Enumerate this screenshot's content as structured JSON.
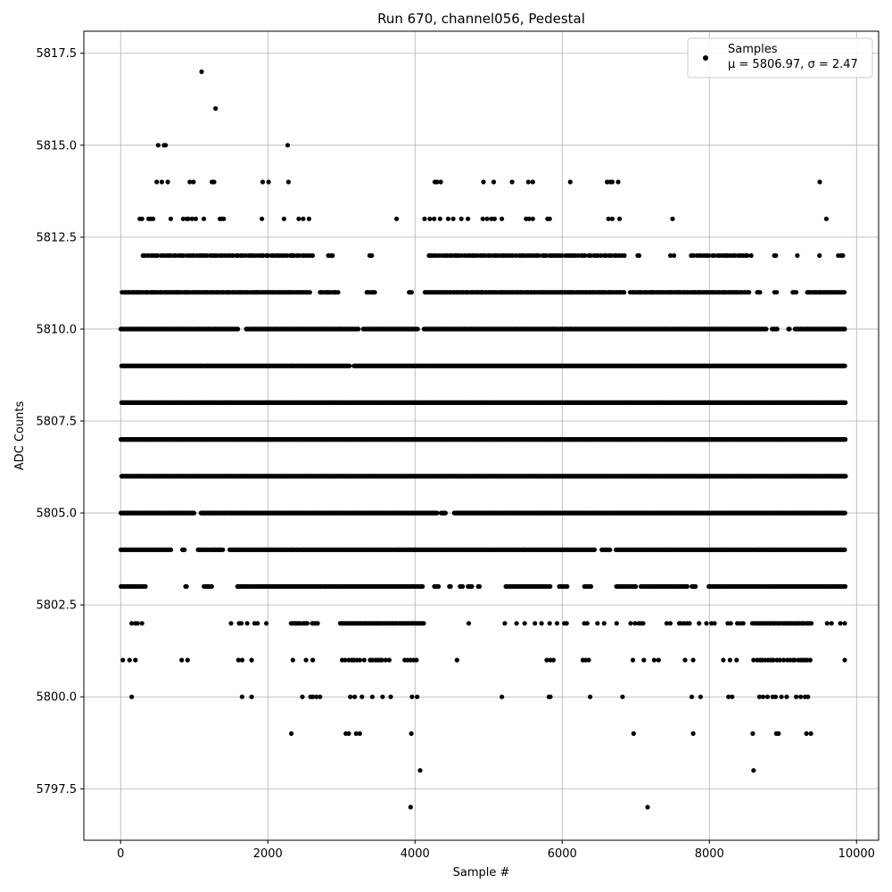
{
  "chart_data": {
    "type": "scatter",
    "title": "Run 670, channel056, Pedestal",
    "xlabel": "Sample #",
    "ylabel": "ADC Counts",
    "xlim": [
      -500,
      10300
    ],
    "ylim": [
      5796.1,
      5818.1
    ],
    "x_ticks": [
      0,
      2000,
      4000,
      6000,
      8000,
      10000
    ],
    "y_ticks": [
      5797.5,
      5800.0,
      5802.5,
      5805.0,
      5807.5,
      5810.0,
      5812.5,
      5815.0,
      5817.5
    ],
    "grid": true,
    "legend": {
      "placement": "top-right",
      "entries": [
        {
          "label": "Samples",
          "stats": "μ = 5806.97, σ = 2.47",
          "color": "#000000"
        }
      ]
    },
    "series": [
      {
        "name": "Samples",
        "color": "#000000",
        "n_samples": 9850,
        "points": [
          [
            1100,
            5817
          ],
          [
            1290,
            5816
          ],
          [
            510,
            5815
          ],
          [
            590,
            5815
          ],
          [
            610,
            5815
          ],
          [
            2270,
            5815
          ],
          [
            490,
            5814
          ],
          [
            560,
            5814
          ],
          [
            640,
            5814
          ],
          [
            940,
            5814
          ],
          [
            990,
            5814
          ],
          [
            1240,
            5814
          ],
          [
            1270,
            5814
          ],
          [
            1930,
            5814
          ],
          [
            2010,
            5814
          ],
          [
            2280,
            5814
          ],
          [
            4270,
            5814
          ],
          [
            4300,
            5814
          ],
          [
            4350,
            5814
          ],
          [
            4930,
            5814
          ],
          [
            5070,
            5814
          ],
          [
            5320,
            5814
          ],
          [
            5540,
            5814
          ],
          [
            5600,
            5814
          ],
          [
            6110,
            5814
          ],
          [
            6610,
            5814
          ],
          [
            6650,
            5814
          ],
          [
            6680,
            5814
          ],
          [
            6760,
            5814
          ],
          [
            9500,
            5814
          ],
          [
            7160,
            5797
          ],
          [
            3940,
            5797
          ],
          [
            4070,
            5798
          ],
          [
            8600,
            5798
          ],
          [
            2320,
            5799
          ],
          [
            3060,
            5799
          ],
          [
            3100,
            5799
          ],
          [
            3200,
            5799
          ],
          [
            3250,
            5799
          ],
          [
            3950,
            5799
          ],
          [
            6970,
            5799
          ],
          [
            7780,
            5799
          ],
          [
            8590,
            5799
          ],
          [
            8910,
            5799
          ],
          [
            8940,
            5799
          ],
          [
            9320,
            5799
          ],
          [
            9380,
            5799
          ],
          [
            150,
            5800
          ],
          [
            1650,
            5800
          ],
          [
            1780,
            5800
          ],
          [
            2470,
            5800
          ],
          [
            2580,
            5800
          ],
          [
            2610,
            5800
          ],
          [
            2660,
            5800
          ],
          [
            2710,
            5800
          ],
          [
            3120,
            5800
          ],
          [
            3180,
            5800
          ],
          [
            3280,
            5800
          ],
          [
            3420,
            5800
          ],
          [
            3560,
            5800
          ],
          [
            3670,
            5800
          ],
          [
            3960,
            5800
          ],
          [
            4030,
            5800
          ],
          [
            5180,
            5800
          ],
          [
            5820,
            5800
          ],
          [
            5840,
            5800
          ],
          [
            6380,
            5800
          ],
          [
            6820,
            5800
          ],
          [
            7760,
            5800
          ],
          [
            7880,
            5800
          ],
          [
            8260,
            5800
          ],
          [
            8310,
            5800
          ],
          [
            8680,
            5800
          ],
          [
            8730,
            5800
          ],
          [
            8790,
            5800
          ],
          [
            8860,
            5800
          ],
          [
            8900,
            5800
          ],
          [
            8980,
            5800
          ],
          [
            9050,
            5800
          ],
          [
            9180,
            5800
          ],
          [
            9240,
            5800
          ],
          [
            9300,
            5800
          ],
          [
            9340,
            5800
          ]
        ],
        "bands": [
          {
            "y": 5813,
            "x": [
              260,
              290,
              380,
              410,
              440,
              680,
              850,
              900,
              920,
              970,
              1020,
              1130,
              1350,
              1370,
              1400,
              1920,
              2220,
              2420,
              2480,
              2560,
              3750,
              4130,
              4200,
              4260,
              4340,
              4450,
              4520,
              4630,
              4720,
              4920,
              4980,
              5040,
              5080,
              5180,
              5510,
              5550,
              5600,
              5800,
              5830,
              6630,
              6680,
              6780,
              7500,
              9590
            ]
          },
          {
            "y": 5812,
            "range": [
              300,
              9850
            ],
            "gaps": [
              [
                2620,
                2800
              ],
              [
                2900,
                3380
              ],
              [
                3420,
                4180
              ],
              [
                6880,
                6980
              ],
              [
                7050,
                7450
              ],
              [
                7550,
                7740
              ],
              [
                8600,
                8880
              ],
              [
                8920,
                9180
              ],
              [
                9220,
                9480
              ],
              [
                9520,
                9720
              ]
            ],
            "step": 35
          },
          {
            "y": 5811,
            "range": [
              0,
              9850
            ],
            "gaps": [
              [
                2580,
                2680
              ],
              [
                2960,
                3320
              ],
              [
                3470,
                3900
              ],
              [
                3960,
                4120
              ],
              [
                6860,
                6920
              ],
              [
                8540,
                8640
              ],
              [
                8700,
                8880
              ],
              [
                8920,
                9130
              ],
              [
                9180,
                9320
              ]
            ],
            "step": 22
          },
          {
            "y": 5810,
            "range": [
              0,
              9850
            ],
            "gaps": [
              [
                1600,
                1700
              ],
              [
                3240,
                3290
              ],
              [
                4050,
                4120
              ],
              [
                8780,
                8850
              ],
              [
                8930,
                9060
              ],
              [
                9100,
                9160
              ]
            ],
            "step": 15
          },
          {
            "y": 5809,
            "range": [
              0,
              9850
            ],
            "gaps": [
              [
                3120,
                3160
              ]
            ],
            "step": 12
          },
          {
            "y": 5808,
            "range": [
              0,
              9850
            ],
            "step": 10
          },
          {
            "y": 5807,
            "range": [
              0,
              9850
            ],
            "step": 10
          },
          {
            "y": 5806,
            "range": [
              0,
              9850
            ],
            "step": 10
          },
          {
            "y": 5805,
            "range": [
              0,
              9850
            ],
            "gaps": [
              [
                1000,
                1080
              ],
              [
                4300,
                4350
              ],
              [
                4420,
                4530
              ]
            ],
            "step": 12
          },
          {
            "y": 5804,
            "range": [
              0,
              9850
            ],
            "gaps": [
              [
                700,
                830
              ],
              [
                870,
                1040
              ],
              [
                1400,
                1470
              ],
              [
                6450,
                6530
              ],
              [
                6650,
                6730
              ]
            ],
            "step": 14
          },
          {
            "y": 5803,
            "range": [
              0,
              9850
            ],
            "gaps": [
              [
                340,
                880
              ],
              [
                920,
                1130
              ],
              [
                1250,
                1580
              ],
              [
                4110,
                4250
              ],
              [
                4320,
                4460
              ],
              [
                4490,
                4600
              ],
              [
                4650,
                4720
              ],
              [
                4780,
                4850
              ],
              [
                4890,
                5230
              ],
              [
                5850,
                5960
              ],
              [
                6080,
                6290
              ],
              [
                6400,
                6730
              ],
              [
                7010,
                7060
              ],
              [
                7700,
                7750
              ],
              [
                7830,
                7990
              ]
            ],
            "step": 18
          },
          {
            "y": 5802,
            "range": [
              2320,
              4120
            ],
            "gaps": [
              [
                2450,
                2470
              ],
              [
                2550,
                2590
              ],
              [
                2680,
                2960
              ]
            ],
            "step": 20
          },
          {
            "y": 5802,
            "x": [
              150,
              200,
              230,
              290,
              1500,
              1610,
              1640,
              1720,
              1820,
              1860,
              1980,
              4730,
              5220,
              5380,
              5490,
              5630,
              5720,
              5830,
              5930,
              6030,
              6060,
              6300,
              6340,
              6480,
              6570,
              6740,
              6930,
              6990,
              7040,
              7070,
              7100,
              7420,
              7470,
              7590,
              7620,
              7660,
              7700,
              7730,
              7860,
              7960,
              8030,
              8070,
              8250,
              8290,
              8380,
              8420,
              8460,
              9600,
              9660,
              9780,
              9840
            ]
          },
          {
            "y": 5802,
            "range": [
              8590,
              9400
            ],
            "step": 22
          },
          {
            "y": 5801,
            "x": [
              30,
              120,
              200,
              830,
              910,
              1600,
              1650,
              1780,
              2340,
              2520,
              2610,
              3010,
              3050,
              3100,
              3140,
              3170,
              3210,
              3250,
              3310,
              3390,
              3420,
              3460,
              3490,
              3520,
              3550,
              3600,
              3650,
              3860,
              3900,
              3940,
              3980,
              4020,
              4570,
              5790,
              5840,
              5880,
              6280,
              6320,
              6360,
              6960,
              7110,
              7250,
              7310,
              7670,
              7780,
              8190,
              8280,
              8370,
              8600,
              8650,
              8690,
              8720,
              8760,
              8800,
              8840,
              8870,
              8920,
              8960,
              9010,
              9060,
              9100,
              9140,
              9160,
              9210,
              9240,
              9270,
              9300,
              9330,
              9370,
              9840
            ]
          }
        ]
      }
    ]
  }
}
